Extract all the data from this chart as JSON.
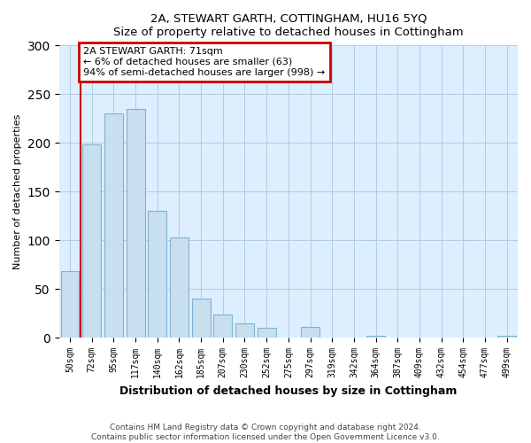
{
  "title": "2A, STEWART GARTH, COTTINGHAM, HU16 5YQ",
  "subtitle": "Size of property relative to detached houses in Cottingham",
  "xlabel": "Distribution of detached houses by size in Cottingham",
  "ylabel": "Number of detached properties",
  "bar_labels": [
    "50sqm",
    "72sqm",
    "95sqm",
    "117sqm",
    "140sqm",
    "162sqm",
    "185sqm",
    "207sqm",
    "230sqm",
    "252sqm",
    "275sqm",
    "297sqm",
    "319sqm",
    "342sqm",
    "364sqm",
    "387sqm",
    "409sqm",
    "432sqm",
    "454sqm",
    "477sqm",
    "499sqm"
  ],
  "bar_values": [
    68,
    198,
    230,
    235,
    130,
    103,
    40,
    24,
    15,
    10,
    0,
    11,
    0,
    0,
    2,
    0,
    0,
    0,
    0,
    0,
    2
  ],
  "bar_color": "#c8dff0",
  "bar_edge_color": "#7fb3d3",
  "highlight_line_color": "#cc0000",
  "annotation_title": "2A STEWART GARTH: 71sqm",
  "annotation_line1": "← 6% of detached houses are smaller (63)",
  "annotation_line2": "94% of semi-detached houses are larger (998) →",
  "annotation_box_facecolor": "#ffffff",
  "annotation_box_edgecolor": "#cc0000",
  "background_color": "#ddeeff",
  "grid_color": "#b0cce0",
  "ylim": [
    0,
    300
  ],
  "yticks": [
    0,
    50,
    100,
    150,
    200,
    250,
    300
  ],
  "footer_line1": "Contains HM Land Registry data © Crown copyright and database right 2024.",
  "footer_line2": "Contains public sector information licensed under the Open Government Licence v3.0."
}
